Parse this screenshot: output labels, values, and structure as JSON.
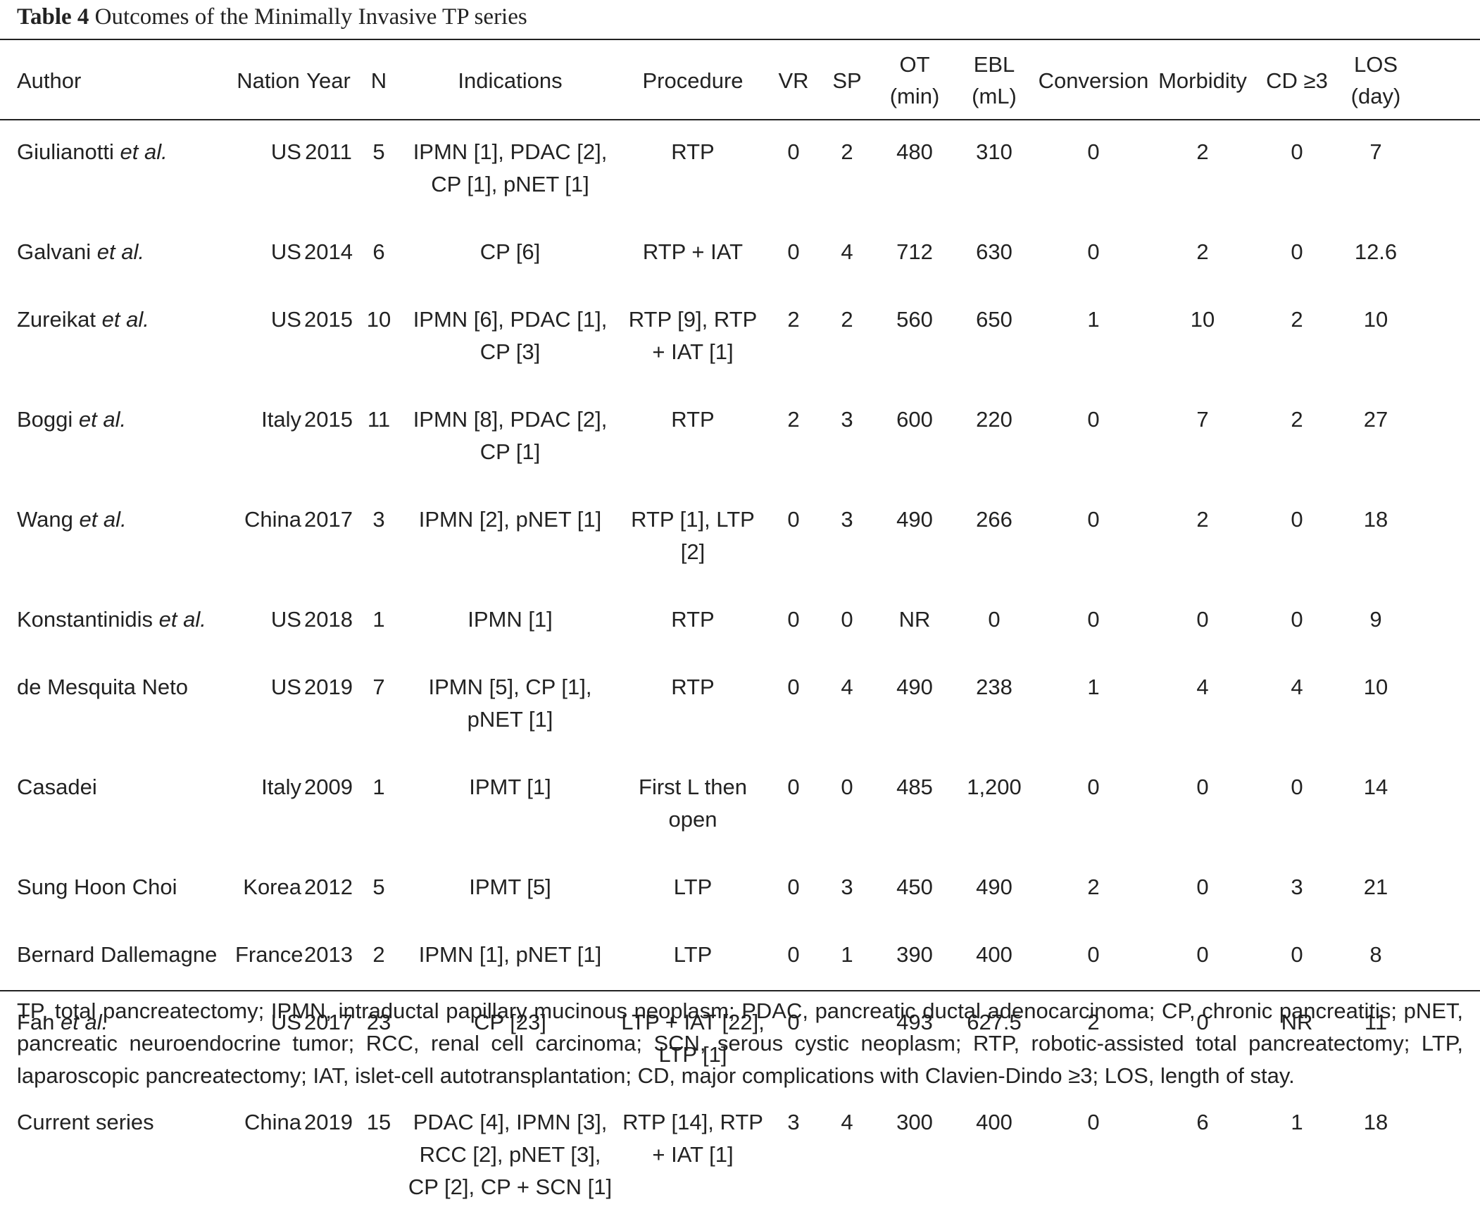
{
  "caption": {
    "label": "Table 4",
    "title": "Outcomes of the Minimally Invasive TP series"
  },
  "headers": {
    "author": "Author",
    "nation": "Nation",
    "year": "Year",
    "n": "N",
    "indications": "Indications",
    "procedure": "Procedure",
    "vr": "VR",
    "sp": "SP",
    "ot_1": "OT",
    "ot_2": "(min)",
    "ebl_1": "EBL",
    "ebl_2": "(mL)",
    "conversion": "Conversion",
    "morbidity": "Morbidity",
    "cd": "CD ≥3",
    "los_1": "LOS",
    "los_2": "(day)"
  },
  "rows": [
    {
      "author": "Giulianotti",
      "etal": "et al.",
      "nation": "US",
      "year": "2011",
      "n": "5",
      "indications_1": "IPMN [1], PDAC [2],",
      "indications_2": "CP [1], pNET [1]",
      "indications_3": "",
      "procedure_1": "RTP",
      "procedure_2": "",
      "vr": "0",
      "sp": "2",
      "ot": "480",
      "ebl": "310",
      "conversion": "0",
      "morbidity": "2",
      "cd": "0",
      "los": "7"
    },
    {
      "author": "Galvani",
      "etal": "et al.",
      "nation": "US",
      "year": "2014",
      "n": "6",
      "indications_1": "CP [6]",
      "indications_2": "",
      "indications_3": "",
      "procedure_1": "RTP + IAT",
      "procedure_2": "",
      "vr": "0",
      "sp": "4",
      "ot": "712",
      "ebl": "630",
      "conversion": "0",
      "morbidity": "2",
      "cd": "0",
      "los": "12.6"
    },
    {
      "author": "Zureikat",
      "etal": "et al.",
      "nation": "US",
      "year": "2015",
      "n": "10",
      "indications_1": "IPMN [6], PDAC [1],",
      "indications_2": "CP [3]",
      "indications_3": "",
      "procedure_1": "RTP [9], RTP",
      "procedure_2": "+ IAT [1]",
      "vr": "2",
      "sp": "2",
      "ot": "560",
      "ebl": "650",
      "conversion": "1",
      "morbidity": "10",
      "cd": "2",
      "los": "10"
    },
    {
      "author": "Boggi",
      "etal": "et al.",
      "nation": "Italy",
      "year": "2015",
      "n": "11",
      "indications_1": "IPMN [8], PDAC [2],",
      "indications_2": "CP [1]",
      "indications_3": "",
      "procedure_1": "RTP",
      "procedure_2": "",
      "vr": "2",
      "sp": "3",
      "ot": "600",
      "ebl": "220",
      "conversion": "0",
      "morbidity": "7",
      "cd": "2",
      "los": "27"
    },
    {
      "author": "Wang",
      "etal": "et al.",
      "nation": "China",
      "year": "2017",
      "n": "3",
      "indications_1": "IPMN [2], pNET [1]",
      "indications_2": "",
      "indications_3": "",
      "procedure_1": "RTP [1], LTP",
      "procedure_2": "[2]",
      "vr": "0",
      "sp": "3",
      "ot": "490",
      "ebl": "266",
      "conversion": "0",
      "morbidity": "2",
      "cd": "0",
      "los": "18"
    },
    {
      "author": "Konstantinidis",
      "etal": "et al.",
      "nation": "US",
      "year": "2018",
      "n": "1",
      "indications_1": "IPMN [1]",
      "indications_2": "",
      "indications_3": "",
      "procedure_1": "RTP",
      "procedure_2": "",
      "vr": "0",
      "sp": "0",
      "ot": "NR",
      "ebl": "0",
      "conversion": "0",
      "morbidity": "0",
      "cd": "0",
      "los": "9"
    },
    {
      "author": "de Mesquita Neto",
      "etal": "",
      "nation": "US",
      "year": "2019",
      "n": "7",
      "indications_1": "IPMN [5], CP [1],",
      "indications_2": "pNET [1]",
      "indications_3": "",
      "procedure_1": "RTP",
      "procedure_2": "",
      "vr": "0",
      "sp": "4",
      "ot": "490",
      "ebl": "238",
      "conversion": "1",
      "morbidity": "4",
      "cd": "4",
      "los": "10"
    },
    {
      "author": "Casadei",
      "etal": "",
      "nation": "Italy",
      "year": "2009",
      "n": "1",
      "indications_1": "IPMT [1]",
      "indications_2": "",
      "indications_3": "",
      "procedure_1": "First L then",
      "procedure_2": "open",
      "vr": "0",
      "sp": "0",
      "ot": "485",
      "ebl": "1,200",
      "conversion": "0",
      "morbidity": "0",
      "cd": "0",
      "los": "14"
    },
    {
      "author": "Sung Hoon Choi",
      "etal": "",
      "nation": "Korea",
      "year": "2012",
      "n": "5",
      "indications_1": "IPMT [5]",
      "indications_2": "",
      "indications_3": "",
      "procedure_1": "LTP",
      "procedure_2": "",
      "vr": "0",
      "sp": "3",
      "ot": "450",
      "ebl": "490",
      "conversion": "2",
      "morbidity": "0",
      "cd": "3",
      "los": "21"
    },
    {
      "author": "Bernard Dallemagne",
      "etal": "",
      "nation": "France",
      "year": "2013",
      "n": "2",
      "indications_1": "IPMN [1], pNET [1]",
      "indications_2": "",
      "indications_3": "",
      "procedure_1": "LTP",
      "procedure_2": "",
      "vr": "0",
      "sp": "1",
      "ot": "390",
      "ebl": "400",
      "conversion": "0",
      "morbidity": "0",
      "cd": "0",
      "los": "8"
    },
    {
      "author": "Fan",
      "etal": "et al.",
      "nation": "US",
      "year": "2017",
      "n": "23",
      "indications_1": "CP [23]",
      "indications_2": "",
      "indications_3": "",
      "procedure_1": "LTP + IAT [22],",
      "procedure_2": "LTP [1]",
      "vr": "0",
      "sp": "",
      "ot": "493",
      "ebl": "627.5",
      "conversion": "2",
      "morbidity": "0",
      "cd": "NR",
      "los": "11"
    },
    {
      "author": "Current series",
      "etal": "",
      "nation": "China",
      "year": "2019",
      "n": "15",
      "indications_1": "PDAC [4], IPMN [3],",
      "indications_2": "RCC [2], pNET [3],",
      "indications_3": "CP [2], CP + SCN [1]",
      "procedure_1": "RTP [14], RTP",
      "procedure_2": "+ IAT [1]",
      "vr": "3",
      "sp": "4",
      "ot": "300",
      "ebl": "400",
      "conversion": "0",
      "morbidity": "6",
      "cd": "1",
      "los": "18"
    }
  ],
  "footnote": "TP, total pancreatectomy; IPMN, intraductal papillary mucinous neoplasm; PDAC, pancreatic ductal adenocarcinoma; CP, chronic pancreatitis; pNET, pancreatic neuroendocrine tumor; RCC, renal cell carcinoma; SCN, serous cystic neoplasm; RTP, robotic-assisted total pancreatectomy; LTP, laparoscopic pancreatectomy; IAT, islet-cell autotransplantation; CD, major complications with Clavien-Dindo ≥3; LOS, length of stay."
}
